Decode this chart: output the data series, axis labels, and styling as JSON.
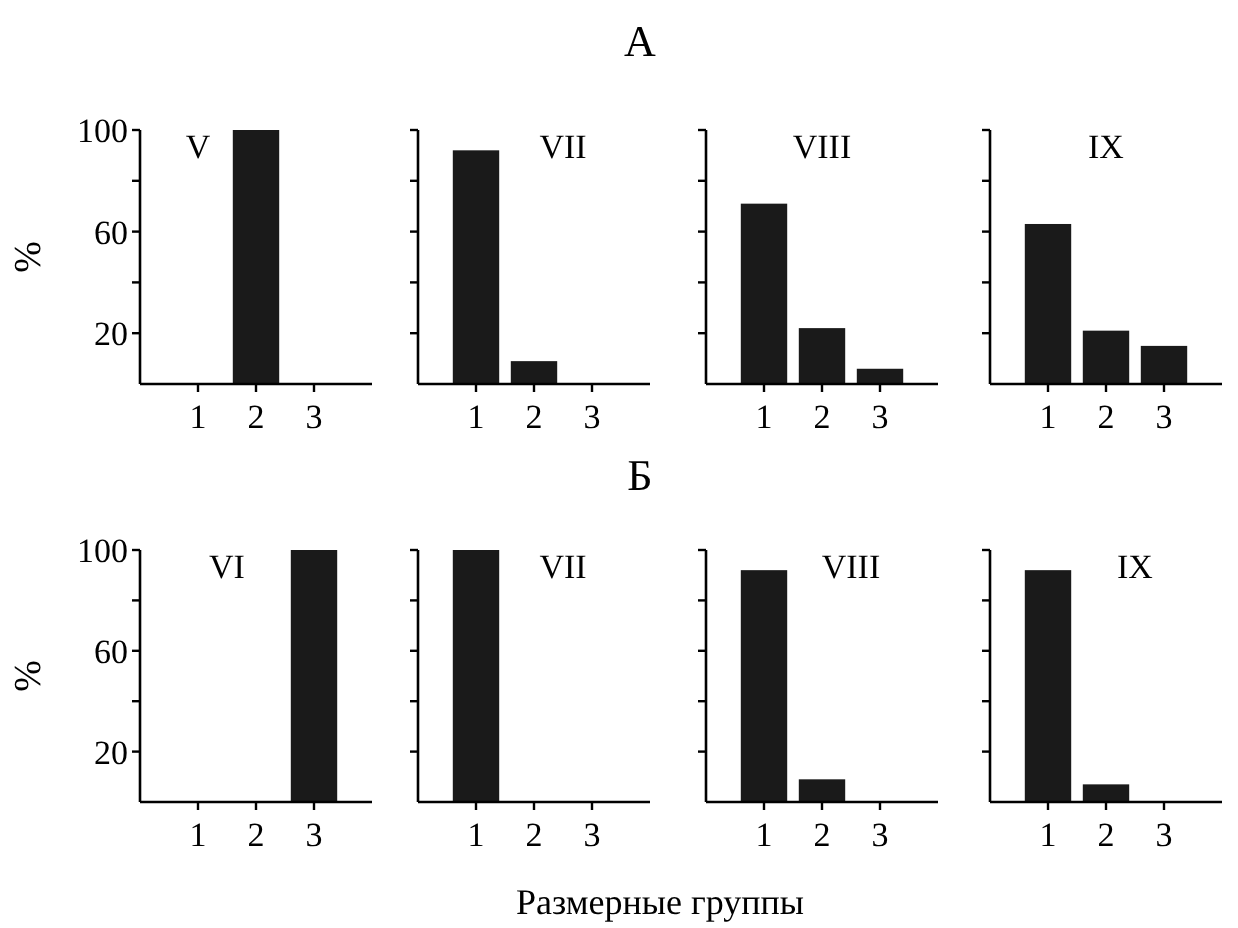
{
  "chart_data": [
    {
      "type": "bar",
      "title": "V",
      "ylabel": "%",
      "annotations": [
        "А"
      ],
      "categories": [
        "1",
        "2",
        "3"
      ],
      "values": [
        0,
        100,
        0
      ],
      "color": "#1a1a1a",
      "ylim": [
        0,
        100
      ],
      "yticks": [
        20,
        {
          "value": 40,
          "label": null
        },
        60,
        {
          "value": 80,
          "label": null
        },
        100
      ]
    },
    {
      "type": "bar",
      "title": "VII",
      "categories": [
        "1",
        "2",
        "3"
      ],
      "values": [
        92,
        9,
        0
      ],
      "color": "#1a1a1a",
      "ylim": [
        0,
        100
      ],
      "yticks": [
        {
          "value": 20,
          "label": null
        },
        {
          "value": 40,
          "label": null
        },
        {
          "value": 60,
          "label": null
        },
        {
          "value": 80,
          "label": null
        },
        {
          "value": 100,
          "label": null
        }
      ],
      "tick_labels": "x"
    },
    {
      "type": "bar",
      "title": "VIII",
      "categories": [
        "1",
        "2",
        "3"
      ],
      "values": [
        71,
        22,
        6
      ],
      "color": "#1a1a1a",
      "ylim": [
        0,
        100
      ],
      "yticks": [
        {
          "value": 20,
          "label": null
        },
        {
          "value": 40,
          "label": null
        },
        {
          "value": 60,
          "label": null
        },
        {
          "value": 80,
          "label": null
        },
        {
          "value": 100,
          "label": null
        }
      ],
      "tick_labels": "x"
    },
    {
      "type": "bar",
      "title": "IX",
      "categories": [
        "1",
        "2",
        "3"
      ],
      "values": [
        63,
        21,
        15
      ],
      "color": "#1a1a1a",
      "ylim": [
        0,
        100
      ],
      "yticks": [
        {
          "value": 20,
          "label": null
        },
        {
          "value": 40,
          "label": null
        },
        {
          "value": 60,
          "label": null
        },
        {
          "value": 80,
          "label": null
        },
        {
          "value": 100,
          "label": null
        }
      ],
      "tick_labels": "x"
    },
    {
      "type": "bar",
      "title": "VI",
      "ylabel": "%",
      "xlabel": "Размерные группы",
      "annotations": [
        "Б"
      ],
      "categories": [
        "1",
        "2",
        "3"
      ],
      "values": [
        0,
        0,
        100
      ],
      "color": "#1a1a1a",
      "ylim": [
        0,
        100
      ],
      "yticks": [
        20,
        {
          "value": 40,
          "label": null
        },
        60,
        {
          "value": 80,
          "label": null
        },
        100
      ]
    },
    {
      "type": "bar",
      "title": "VII",
      "categories": [
        "1",
        "2",
        "3"
      ],
      "values": [
        100,
        0,
        0
      ],
      "color": "#1a1a1a",
      "ylim": [
        0,
        100
      ],
      "yticks": [
        {
          "value": 20,
          "label": null
        },
        {
          "value": 40,
          "label": null
        },
        {
          "value": 60,
          "label": null
        },
        {
          "value": 80,
          "label": null
        },
        {
          "value": 100,
          "label": null
        }
      ],
      "tick_labels": "x"
    },
    {
      "type": "bar",
      "title": "VIII",
      "categories": [
        "1",
        "2",
        "3"
      ],
      "values": [
        92,
        9,
        0
      ],
      "color": "#1a1a1a",
      "ylim": [
        0,
        100
      ],
      "yticks": [
        {
          "value": 20,
          "label": null
        },
        {
          "value": 40,
          "label": null
        },
        {
          "value": 60,
          "label": null
        },
        {
          "value": 80,
          "label": null
        },
        {
          "value": 100,
          "label": null
        }
      ],
      "tick_labels": "x"
    },
    {
      "type": "bar",
      "title": "IX",
      "categories": [
        "1",
        "2",
        "3"
      ],
      "values": [
        92,
        7,
        0
      ],
      "color": "#1a1a1a",
      "ylim": [
        0,
        100
      ],
      "yticks": [
        {
          "value": 20,
          "label": null
        },
        {
          "value": 40,
          "label": null
        },
        {
          "value": 60,
          "label": null
        },
        {
          "value": 80,
          "label": null
        },
        {
          "value": 100,
          "label": null
        }
      ],
      "tick_labels": "x"
    }
  ]
}
